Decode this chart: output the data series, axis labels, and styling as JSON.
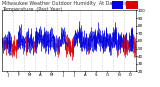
{
  "background_color": "#ffffff",
  "grid_color": "#aaaaaa",
  "num_points": 365,
  "seed": 17,
  "ylim": [
    20,
    100
  ],
  "yticks": [
    20,
    30,
    40,
    50,
    60,
    70,
    80,
    90,
    100
  ],
  "blue_color": "#0000dd",
  "red_color": "#dd0000",
  "fig_width": 1.6,
  "fig_height": 0.87,
  "dpi": 100,
  "tick_fontsize": 3.0,
  "xlabel_fontsize": 2.8,
  "title_fontsize": 3.5
}
